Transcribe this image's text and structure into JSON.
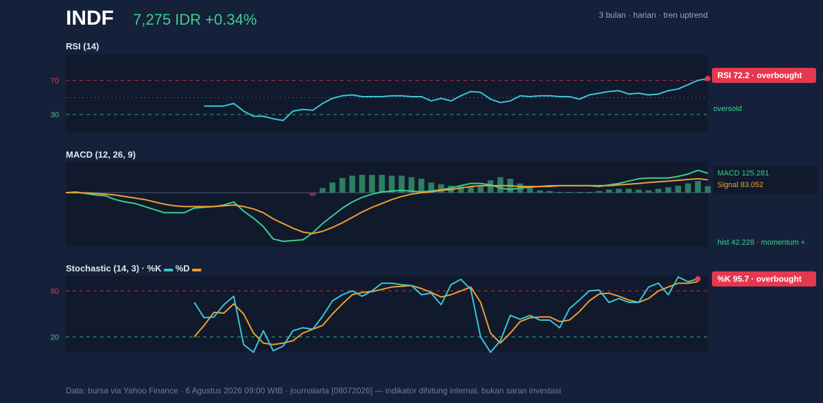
{
  "header": {
    "ticker": "INDF",
    "price_change": "7,275 IDR +0.34%",
    "meta": "3 bulan · harian · tren uptrend"
  },
  "panels": {
    "rsi": {
      "title": "RSI (14)",
      "badge": "RSI 72.2 · overbought",
      "oversold_label": "oversold"
    },
    "macd": {
      "title": "MACD (12, 26, 9)",
      "macd_label": "MACD 125.281",
      "signal_label": "Signal 83.052",
      "hist_label": "hist 42.228 · momentum +"
    },
    "stoch": {
      "title_prefix": "Stochastic (14, 3) · ",
      "k_label": "%K",
      "d_label": "%D",
      "badge": "%K 95.7 · overbought"
    }
  },
  "footer": "Data: bursa via Yahoo Finance · 6 Agustus 2026 09:00 WIB · journalarta [08072026] — indikator dihitung internal, bukan saran investasi",
  "colors": {
    "rsi_line": "#3ec6d8",
    "macd_line": "#3ecf8e",
    "signal_line": "#f0a030",
    "hist_pos": "#2f7d62",
    "hist_neg": "#8a2f45",
    "overbought": "#e5384f",
    "oversold": "#3ecf8e",
    "stoch_k": "#3ec6d8",
    "stoch_d": "#f0a030"
  },
  "chart_data": [
    {
      "type": "line",
      "name": "RSI (14)",
      "ylim": [
        10,
        100
      ],
      "yticks": [
        30,
        70
      ],
      "overbought": 70,
      "oversold": 30,
      "midline": 50,
      "start_index": 14,
      "values": [
        40,
        40,
        40,
        43,
        34,
        28,
        28,
        25,
        23,
        34,
        36,
        35,
        43,
        49,
        52,
        53,
        51,
        51,
        51,
        52,
        52,
        51,
        51,
        46,
        49,
        46,
        52,
        57,
        56,
        48,
        44,
        46,
        52,
        51,
        52,
        52,
        51,
        51,
        48,
        53,
        55,
        57,
        58,
        54,
        55,
        53,
        54,
        58,
        60,
        65,
        70,
        72.2
      ]
    },
    {
      "type": "line",
      "name": "MACD (12, 26, 9)",
      "ylim": [
        -350,
        200
      ],
      "x_count": 66,
      "series": [
        {
          "name": "MACD",
          "values": [
            0,
            5,
            -5,
            -15,
            -20,
            -45,
            -60,
            -70,
            -90,
            -110,
            -130,
            -130,
            -130,
            -100,
            -95,
            -90,
            -80,
            -60,
            -120,
            -165,
            -220,
            -300,
            -315,
            -310,
            -305,
            -260,
            -200,
            -150,
            -100,
            -60,
            -30,
            -10,
            5,
            10,
            15,
            10,
            5,
            10,
            20,
            30,
            45,
            60,
            60,
            50,
            30,
            20,
            30,
            35,
            40,
            45,
            45,
            45,
            45,
            45,
            40,
            50,
            60,
            75,
            90,
            95,
            95,
            95,
            105,
            120,
            145,
            125.281
          ]
        },
        {
          "name": "Signal",
          "values": [
            0,
            0,
            -2,
            -5,
            -10,
            -15,
            -25,
            -35,
            -45,
            -60,
            -75,
            -85,
            -90,
            -90,
            -90,
            -90,
            -85,
            -80,
            -90,
            -105,
            -130,
            -170,
            -200,
            -230,
            -255,
            -265,
            -250,
            -225,
            -195,
            -160,
            -125,
            -95,
            -70,
            -45,
            -25,
            -10,
            0,
            5,
            15,
            20,
            30,
            40,
            45,
            45,
            45,
            45,
            40,
            40,
            40,
            40,
            45,
            45,
            45,
            45,
            45,
            45,
            50,
            55,
            60,
            65,
            70,
            75,
            80,
            85,
            90,
            83.052
          ]
        },
        {
          "name": "hist",
          "values": [
            0,
            0,
            0,
            0,
            0,
            0,
            0,
            0,
            0,
            0,
            0,
            0,
            0,
            0,
            0,
            0,
            0,
            0,
            0,
            0,
            0,
            0,
            0,
            0,
            0,
            -20,
            30,
            65,
            95,
            110,
            115,
            115,
            115,
            110,
            110,
            100,
            90,
            65,
            55,
            45,
            40,
            40,
            45,
            80,
            100,
            90,
            60,
            30,
            15,
            10,
            5,
            5,
            5,
            5,
            10,
            20,
            25,
            25,
            20,
            15,
            25,
            35,
            45,
            60,
            75,
            42.228
          ]
        }
      ]
    },
    {
      "type": "line",
      "name": "Stochastic (14, 3)",
      "ylim": [
        0,
        100
      ],
      "yticks": [
        20,
        80
      ],
      "overbought": 80,
      "oversold": 20,
      "start_index": 13,
      "series": [
        {
          "name": "%K",
          "values": [
            65,
            45,
            46,
            62,
            73,
            10,
            0,
            28,
            2,
            8,
            28,
            32,
            30,
            47,
            67,
            75,
            80,
            73,
            80,
            90,
            90,
            88,
            87,
            75,
            77,
            62,
            88,
            95,
            82,
            20,
            0,
            15,
            48,
            43,
            48,
            42,
            42,
            32,
            57,
            68,
            80,
            81,
            65,
            70,
            65,
            65,
            85,
            90,
            75,
            98,
            92,
            95.7
          ]
        },
        {
          "name": "%D",
          "values": [
            20,
            35,
            52,
            51,
            63,
            50,
            25,
            12,
            10,
            12,
            15,
            25,
            30,
            35,
            50,
            63,
            75,
            78,
            79,
            82,
            85,
            86,
            87,
            83,
            78,
            72,
            75,
            80,
            85,
            65,
            25,
            12,
            25,
            40,
            45,
            46,
            46,
            40,
            42,
            53,
            67,
            76,
            77,
            73,
            68,
            65,
            70,
            80,
            85,
            90,
            90,
            92
          ]
        }
      ]
    }
  ]
}
